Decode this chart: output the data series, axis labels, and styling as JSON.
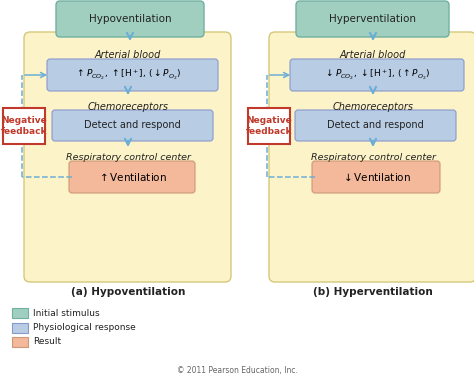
{
  "bg_color": "#ffffff",
  "fig_width": 4.74,
  "fig_height": 3.79,
  "dpi": 100,
  "yellow_bg": "#fdf3c8",
  "teal_box": "#a0cfc0",
  "blue_box": "#b8cce4",
  "salmon_box": "#f4b89a",
  "neg_feedback_border": "#c0392b",
  "arrow_color": "#6baed6",
  "arrow_color_dark": "#5599cc",
  "left_title": "Hypoventilation",
  "right_title": "Hyperventilation",
  "left_arterial_label": "Arterial blood",
  "right_arterial_label": "Arterial blood",
  "left_chemo_label": "Chemoreceptors",
  "right_chemo_label": "Chemoreceptors",
  "left_detect": "Detect and respond",
  "right_detect": "Detect and respond",
  "left_resp_label": "Respiratory control center",
  "right_resp_label": "Respiratory control center",
  "neg_feedback": "Negative\nfeedback",
  "label_a": "(a) Hypoventilation",
  "label_b": "(b) Hyperventilation",
  "legend_initial": "Initial stimulus",
  "legend_physio": "Physiological response",
  "legend_result": "Result",
  "copyright": "© 2011 Pearson Education, Inc."
}
